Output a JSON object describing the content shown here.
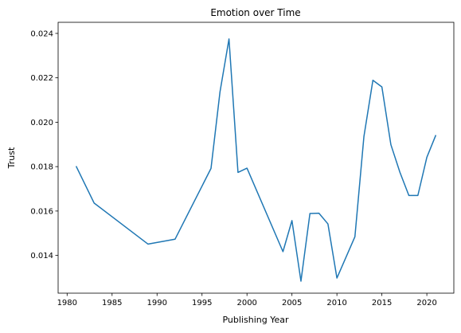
{
  "chart_data": {
    "type": "line",
    "title": "Emotion over Time",
    "xlabel": "Publishing Year",
    "ylabel": "Trust",
    "xlim": [
      1979.0,
      2023.0
    ],
    "ylim": [
      0.0123,
      0.0245
    ],
    "xticks": [
      1980,
      1985,
      1990,
      1995,
      2000,
      2005,
      2010,
      2015,
      2020
    ],
    "yticks": [
      0.014,
      0.016,
      0.018,
      0.02,
      0.022,
      0.024
    ],
    "ytick_labels": [
      "0.014",
      "0.016",
      "0.018",
      "0.020",
      "0.022",
      "0.024"
    ],
    "grid": false,
    "line_color": "#1f77b4",
    "series": [
      {
        "x": [
          1981,
          1983,
          1989,
          1992,
          1996,
          1997,
          1998,
          1999,
          2000,
          2004,
          2005,
          2006,
          2007,
          2008,
          2009,
          2010,
          2012,
          2013,
          2014,
          2015,
          2016,
          2017,
          2018,
          2019,
          2020,
          2021
        ],
        "values": [
          0.01802,
          0.01636,
          0.01451,
          0.01473,
          0.01792,
          0.02137,
          0.02375,
          0.01774,
          0.01793,
          0.01417,
          0.01557,
          0.01284,
          0.01589,
          0.0159,
          0.01542,
          0.01298,
          0.01484,
          0.01935,
          0.02189,
          0.02159,
          0.01899,
          0.01775,
          0.0167,
          0.0167,
          0.01842,
          0.01942
        ]
      }
    ]
  }
}
